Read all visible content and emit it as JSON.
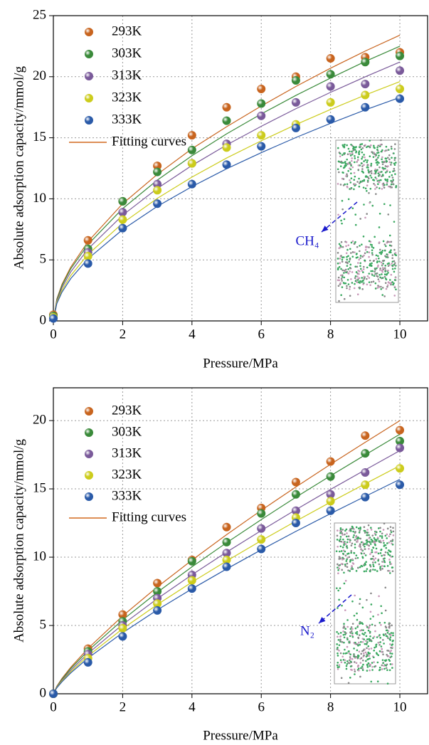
{
  "chart_data": [
    {
      "type": "scatter",
      "x_label": "Pressure/MPa",
      "y_label": "Absolute adsorption capacity/mmol/g",
      "annotation": "CH₄",
      "xlim": [
        0,
        10.8
      ],
      "ylim": [
        0,
        25
      ],
      "xticks": [
        0,
        2,
        4,
        6,
        8,
        10
      ],
      "yticks": [
        0,
        5,
        10,
        15,
        20,
        25
      ],
      "grid": true,
      "x": [
        0,
        1,
        2,
        3,
        4,
        5,
        6,
        7,
        8,
        9,
        10
      ],
      "series": [
        {
          "name": "293K",
          "color": "#c8641e",
          "values": [
            0.5,
            6.6,
            9.8,
            12.7,
            15.2,
            17.5,
            19.0,
            20.0,
            21.5,
            21.6,
            22.0
          ]
        },
        {
          "name": "303K",
          "color": "#3a8a3a",
          "values": [
            0.4,
            5.9,
            9.8,
            12.2,
            14.0,
            16.4,
            17.8,
            19.7,
            20.2,
            21.2,
            21.7
          ]
        },
        {
          "name": "313K",
          "color": "#7a5a9a",
          "values": [
            0.3,
            5.6,
            8.9,
            11.2,
            12.9,
            14.5,
            16.8,
            17.9,
            19.2,
            19.4,
            20.5
          ]
        },
        {
          "name": "323K",
          "color": "#cccc1c",
          "values": [
            0.3,
            5.3,
            8.3,
            10.7,
            12.9,
            14.2,
            15.2,
            16.1,
            17.9,
            18.5,
            19.0
          ]
        },
        {
          "name": "333K",
          "color": "#2a5aa8",
          "values": [
            0.2,
            4.7,
            7.6,
            9.6,
            11.2,
            12.8,
            14.3,
            15.8,
            16.5,
            17.5,
            18.2
          ]
        }
      ],
      "fit": {
        "name": "Fitting curves",
        "color": "#d2691e",
        "x": [
          0,
          0.1,
          0.25,
          0.5,
          1,
          2,
          3,
          4,
          5,
          6,
          7,
          8,
          9,
          10
        ],
        "curves": [
          [
            0,
            1.8,
            3.0,
            4.4,
            6.5,
            9.6,
            12.0,
            14.1,
            15.9,
            17.6,
            19.2,
            20.7,
            22.1,
            23.4
          ],
          [
            0,
            1.74,
            2.9,
            4.26,
            6.26,
            9.2,
            11.53,
            13.53,
            15.32,
            16.95,
            18.47,
            19.89,
            21.25,
            22.5
          ],
          [
            0,
            1.64,
            2.73,
            4.01,
            5.89,
            8.66,
            10.85,
            12.73,
            14.41,
            15.94,
            17.38,
            18.72,
            19.99,
            21.2
          ],
          [
            0,
            1.52,
            2.52,
            3.71,
            5.45,
            8.01,
            10.04,
            11.78,
            13.34,
            14.75,
            16.08,
            17.32,
            18.5,
            19.6
          ],
          [
            0,
            1.42,
            2.36,
            3.46,
            5.09,
            7.48,
            9.38,
            11.0,
            12.46,
            13.78,
            15.02,
            16.18,
            17.28,
            18.3
          ]
        ]
      }
    },
    {
      "type": "scatter",
      "x_label": "Pressure/MPa",
      "y_label": "Absolute adsorption capacity/mmol/g",
      "annotation": "N₂",
      "xlim": [
        0,
        10.8
      ],
      "ylim": [
        0,
        22.4
      ],
      "xticks": [
        0,
        2,
        4,
        6,
        8,
        10
      ],
      "yticks": [
        0,
        5,
        10,
        15,
        20
      ],
      "grid": true,
      "x": [
        0,
        1,
        2,
        3,
        4,
        5,
        6,
        7,
        8,
        9,
        10
      ],
      "series": [
        {
          "name": "293K",
          "color": "#c8641e",
          "values": [
            0,
            3.3,
            5.8,
            8.1,
            9.8,
            12.2,
            13.6,
            15.5,
            17.0,
            18.9,
            19.3
          ]
        },
        {
          "name": "303K",
          "color": "#3a8a3a",
          "values": [
            0,
            3.1,
            5.3,
            7.5,
            9.7,
            11.1,
            13.2,
            14.6,
            15.9,
            17.6,
            18.5
          ]
        },
        {
          "name": "313K",
          "color": "#7a5a9a",
          "values": [
            0,
            2.9,
            5.0,
            7.0,
            8.7,
            10.3,
            12.1,
            13.4,
            14.6,
            16.2,
            18.0
          ]
        },
        {
          "name": "323K",
          "color": "#cccc1c",
          "values": [
            0,
            2.6,
            4.8,
            6.6,
            8.3,
            9.8,
            11.3,
            12.9,
            14.1,
            15.3,
            16.5
          ]
        },
        {
          "name": "333K",
          "color": "#2a5aa8",
          "values": [
            0,
            2.3,
            4.2,
            6.1,
            7.7,
            9.3,
            10.6,
            12.5,
            13.4,
            14.4,
            15.3
          ]
        }
      ],
      "fit": {
        "name": "Fitting curves",
        "color": "#d2691e",
        "x": [
          0,
          0.1,
          0.25,
          0.5,
          1,
          2,
          3,
          4,
          5,
          6,
          7,
          8,
          9,
          10
        ],
        "curves": [
          [
            0,
            0.55,
            1.13,
            1.93,
            3.32,
            5.7,
            7.82,
            9.78,
            11.65,
            13.43,
            15.14,
            16.8,
            18.41,
            20.0
          ],
          [
            0,
            0.52,
            1.07,
            1.84,
            3.15,
            5.41,
            7.43,
            9.29,
            11.06,
            12.75,
            14.39,
            15.96,
            17.49,
            19.0
          ],
          [
            0,
            0.49,
            1.0,
            1.72,
            2.95,
            5.07,
            6.96,
            8.71,
            10.37,
            11.95,
            13.48,
            14.96,
            16.39,
            17.8
          ],
          [
            0,
            0.46,
            0.94,
            1.61,
            2.77,
            4.76,
            6.53,
            8.17,
            9.72,
            11.21,
            12.64,
            14.03,
            15.37,
            16.7
          ],
          [
            0,
            0.43,
            0.88,
            1.52,
            2.61,
            4.47,
            6.14,
            7.68,
            9.14,
            10.54,
            11.89,
            13.19,
            14.45,
            15.7
          ]
        ]
      }
    }
  ]
}
